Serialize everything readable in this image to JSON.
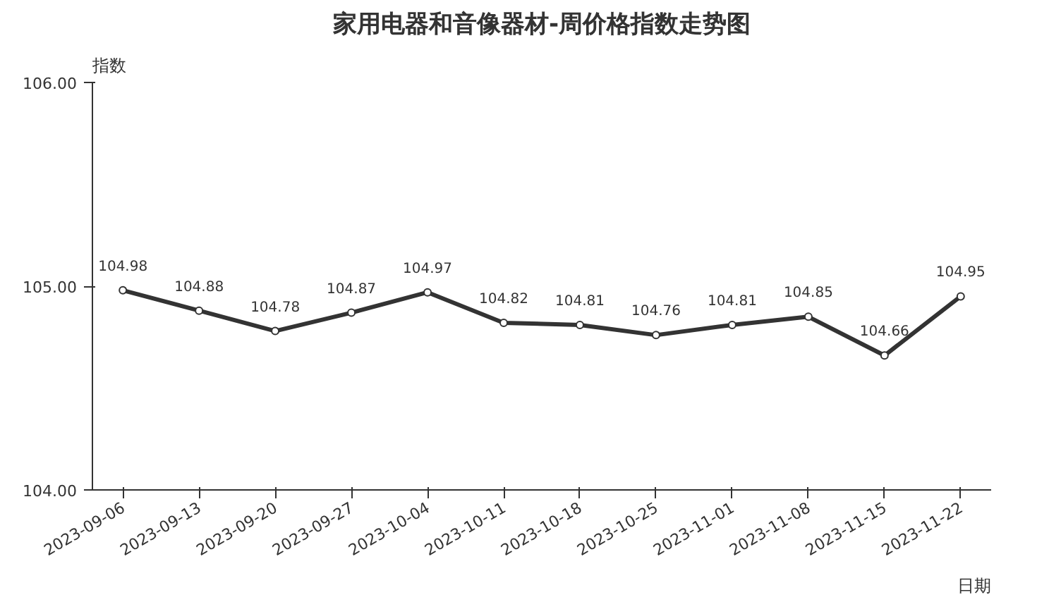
{
  "chart_data": {
    "type": "line",
    "title": "家用电器和音像器材-周价格指数走势图",
    "xlabel": "日期",
    "ylabel": "指数",
    "categories": [
      "2023-09-06",
      "2023-09-13",
      "2023-09-20",
      "2023-09-27",
      "2023-10-04",
      "2023-10-11",
      "2023-10-18",
      "2023-10-25",
      "2023-11-01",
      "2023-11-08",
      "2023-11-15",
      "2023-11-22"
    ],
    "series": [
      {
        "color": "#333333",
        "values": [
          104.98,
          104.88,
          104.78,
          104.87,
          104.97,
          104.82,
          104.81,
          104.76,
          104.81,
          104.85,
          104.66,
          104.95
        ]
      }
    ],
    "ylim": [
      104,
      106
    ],
    "yticks": [
      {
        "value": 104,
        "label": "104.00"
      },
      {
        "value": 105,
        "label": "105.00"
      },
      {
        "value": 106,
        "label": "106.00"
      }
    ],
    "grid": false,
    "marker": "circle",
    "line_style": "solid",
    "data_labels": true
  }
}
